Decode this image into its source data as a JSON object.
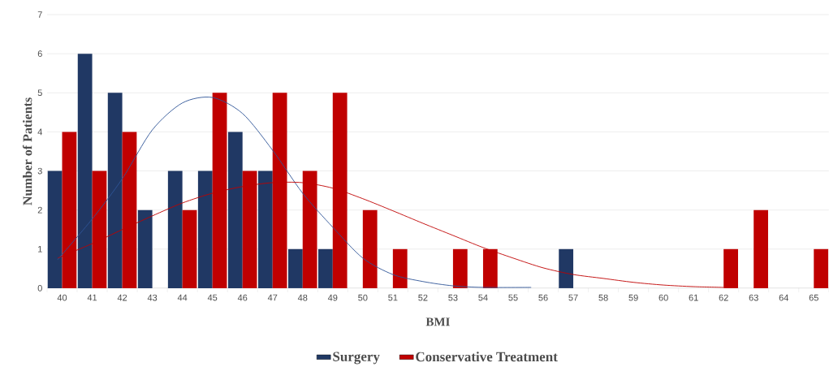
{
  "chart_data": {
    "type": "bar",
    "xlabel": "BMI",
    "ylabel": "Number of Patients",
    "x": [
      40,
      41,
      42,
      43,
      44,
      45,
      46,
      47,
      48,
      49,
      50,
      51,
      52,
      53,
      54,
      55,
      56,
      57,
      58,
      59,
      60,
      61,
      62,
      63,
      64,
      65
    ],
    "xlim": [
      39.5,
      65.5
    ],
    "ylim": [
      0,
      7
    ],
    "xticks": [
      40,
      41,
      42,
      43,
      44,
      45,
      46,
      47,
      48,
      49,
      50,
      51,
      52,
      53,
      54,
      55,
      56,
      57,
      58,
      59,
      60,
      61,
      62,
      63,
      64,
      65
    ],
    "yticks": [
      0,
      1,
      2,
      3,
      4,
      5,
      6,
      7
    ],
    "grid": "y",
    "legend": "bottom",
    "marker": "none",
    "series": [
      {
        "name": "Surgery",
        "color": "#203864",
        "values": [
          3,
          6,
          5,
          2,
          3,
          3,
          4,
          3,
          1,
          1,
          0,
          0,
          0,
          0,
          0,
          0,
          0,
          1,
          0,
          0,
          0,
          0,
          0,
          0,
          0,
          0
        ]
      },
      {
        "name": "Conservative Treatment",
        "color": "#c00000",
        "values": [
          4,
          3,
          4,
          0,
          2,
          5,
          3,
          5,
          3,
          5,
          2,
          1,
          0,
          1,
          1,
          0,
          0,
          0,
          0,
          0,
          0,
          0,
          1,
          2,
          0,
          1
        ]
      },
      {
        "type": "line",
        "color": "#2f5597",
        "x": [
          39.85,
          41,
          42,
          43,
          44,
          45,
          46,
          47,
          48,
          49,
          50,
          51,
          52,
          53,
          54,
          55.6
        ],
        "values": [
          0.73,
          1.77,
          2.8,
          4.05,
          4.74,
          4.88,
          4.47,
          3.53,
          2.43,
          1.56,
          0.77,
          0.35,
          0.17,
          0.06,
          0.02,
          0.02
        ]
      },
      {
        "type": "line",
        "color": "#c00000",
        "x": [
          39.85,
          41,
          42,
          43,
          44,
          45,
          46,
          47,
          48,
          49,
          50,
          51,
          52,
          53,
          54,
          55,
          56,
          57,
          58,
          59,
          60,
          61,
          62
        ],
        "values": [
          0.77,
          1.14,
          1.5,
          1.85,
          2.18,
          2.43,
          2.6,
          2.7,
          2.7,
          2.56,
          2.29,
          1.98,
          1.66,
          1.35,
          1.04,
          0.77,
          0.52,
          0.35,
          0.25,
          0.15,
          0.08,
          0.04,
          0.02
        ]
      }
    ]
  }
}
